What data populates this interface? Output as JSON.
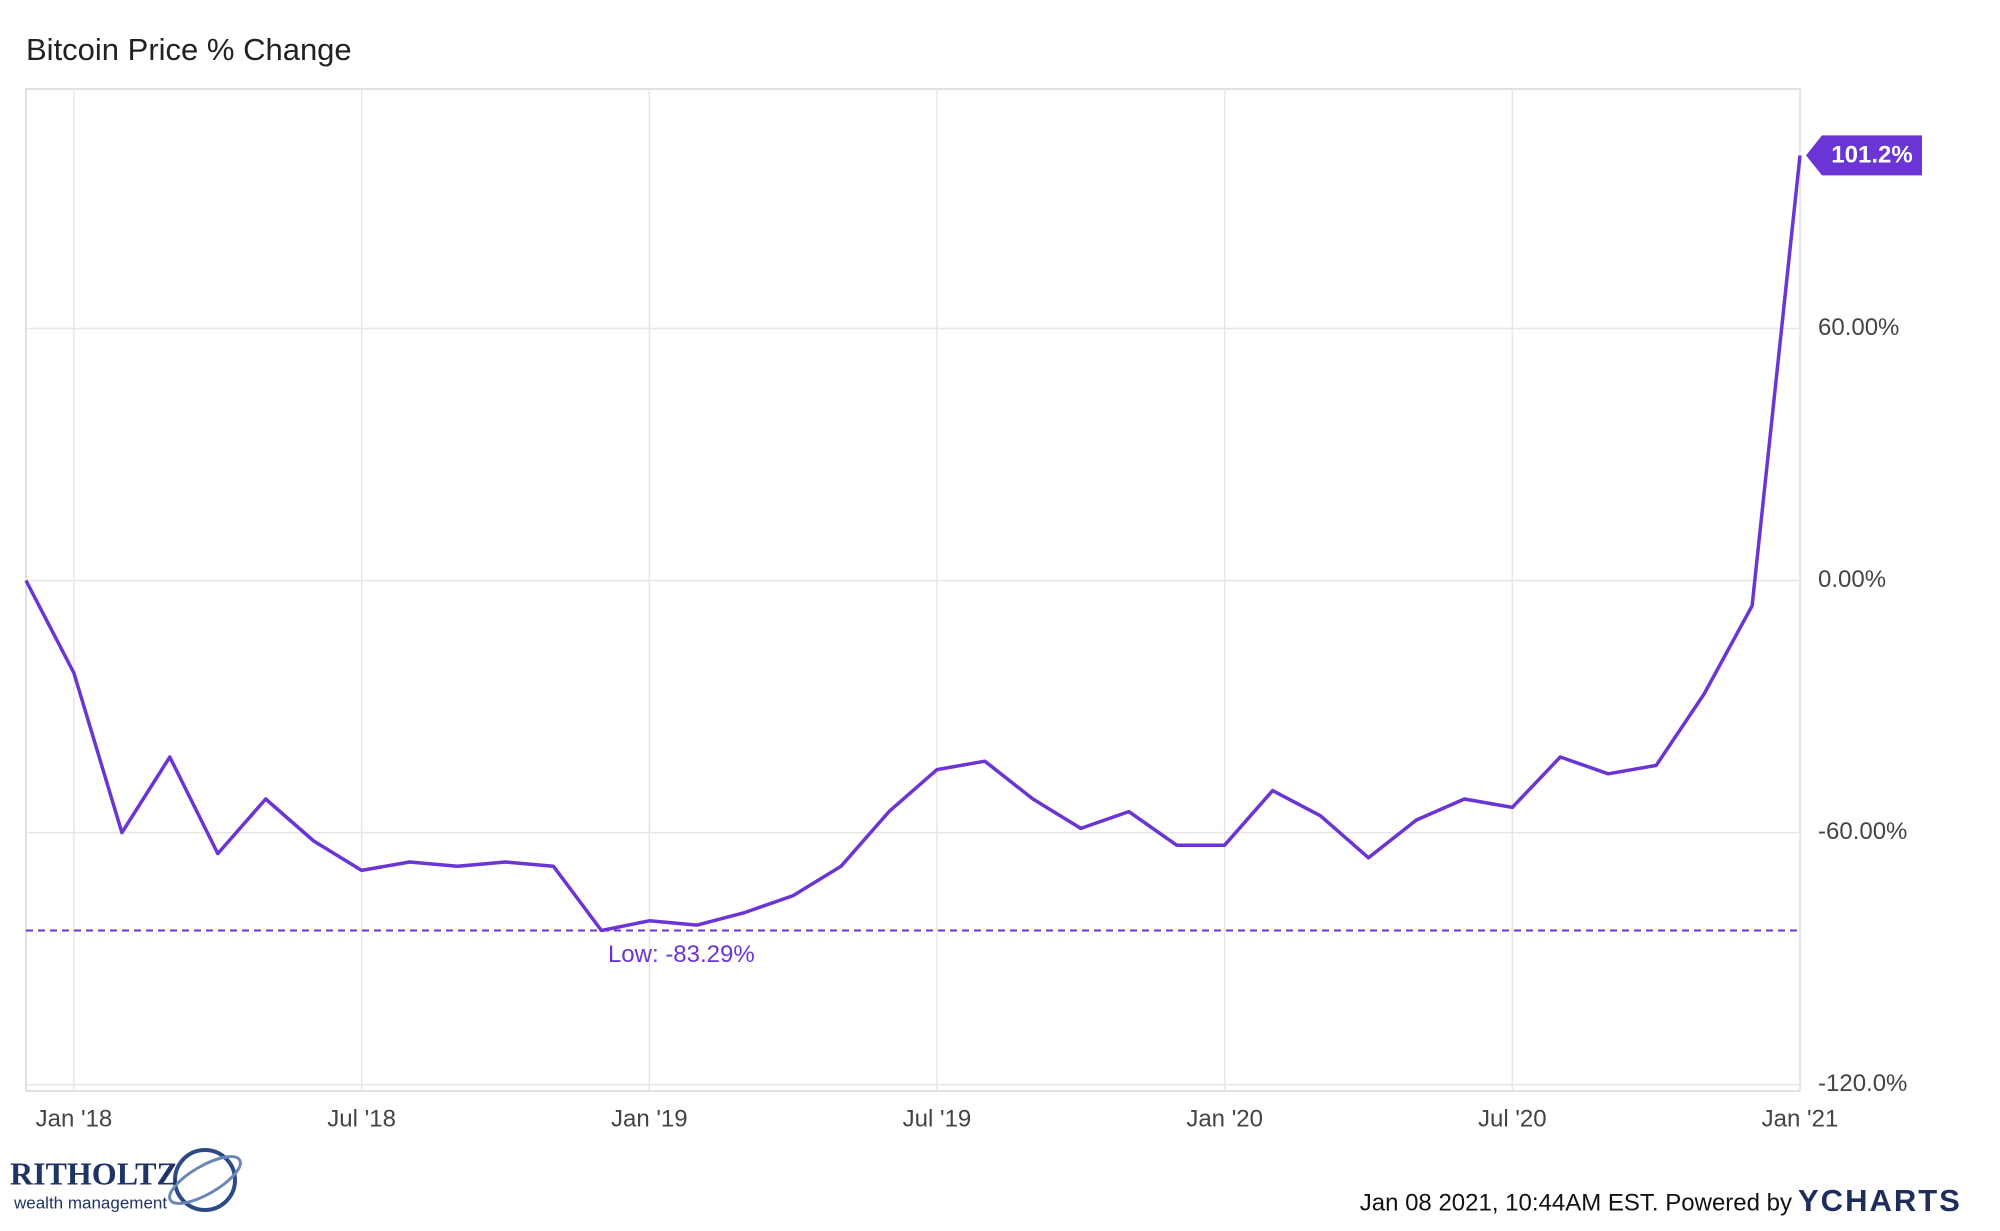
{
  "chart_data": {
    "type": "line",
    "title": "Bitcoin Price % Change",
    "color": "#6a35d4",
    "x": [
      "2017-12",
      "2018-01",
      "2018-02",
      "2018-03",
      "2018-04",
      "2018-05",
      "2018-06",
      "2018-07",
      "2018-08",
      "2018-09",
      "2018-10",
      "2018-11",
      "2018-12",
      "2019-01",
      "2019-02",
      "2019-03",
      "2019-04",
      "2019-05",
      "2019-06",
      "2019-07",
      "2019-08",
      "2019-09",
      "2019-10",
      "2019-11",
      "2019-12",
      "2020-01",
      "2020-02",
      "2020-03",
      "2020-04",
      "2020-05",
      "2020-06",
      "2020-07",
      "2020-08",
      "2020-09",
      "2020-10",
      "2020-11",
      "2020-12",
      "2021-01"
    ],
    "values": [
      0,
      -22,
      -60,
      -42,
      -65,
      -52,
      -62,
      -69,
      -67,
      -68,
      -67,
      -68,
      -83.29,
      -81,
      -82,
      -79,
      -75,
      -68,
      -55,
      -45,
      -43,
      -52,
      -59,
      -55,
      -63,
      -63,
      -50,
      -56,
      -66,
      -57,
      -52,
      -54,
      -42,
      -46,
      -44,
      -27,
      -6,
      101.2
    ],
    "value_labels": [
      null,
      null,
      null,
      null,
      null,
      null,
      null,
      null,
      null,
      null,
      null,
      null,
      null,
      null,
      null,
      null,
      null,
      null,
      null,
      null,
      null,
      null,
      null,
      null,
      null,
      null,
      null,
      null,
      null,
      null,
      null,
      null,
      null,
      null,
      null,
      null,
      null,
      "101.2%"
    ],
    "xlim": [
      "2017-12",
      "2021-01"
    ],
    "xticks": [
      {
        "value": "2018-01",
        "label": "Jan '18"
      },
      {
        "value": "2018-07",
        "label": "Jul '18"
      },
      {
        "value": "2019-01",
        "label": "Jan '19"
      },
      {
        "value": "2019-07",
        "label": "Jul '19"
      },
      {
        "value": "2020-01",
        "label": "Jan '20"
      },
      {
        "value": "2020-07",
        "label": "Jul '20"
      },
      {
        "value": "2021-01",
        "label": "Jan '21"
      }
    ],
    "ylim": [
      -121.5,
      117
    ],
    "yticks": [
      {
        "value": -120,
        "label": "-120.0%"
      },
      {
        "value": -60,
        "label": "-60.00%"
      },
      {
        "value": 0,
        "label": "0.00%"
      },
      {
        "value": 60,
        "label": "60.00%"
      }
    ],
    "grid": true,
    "low": {
      "value": -83.29,
      "label": "Low: -83.29%"
    }
  },
  "footer": {
    "timestamp": "Jan 08 2021, 10:44AM EST. Powered by",
    "brand": "YCHARTS",
    "logo": "RITHOLTZ",
    "logo_sub": "wealth management"
  }
}
